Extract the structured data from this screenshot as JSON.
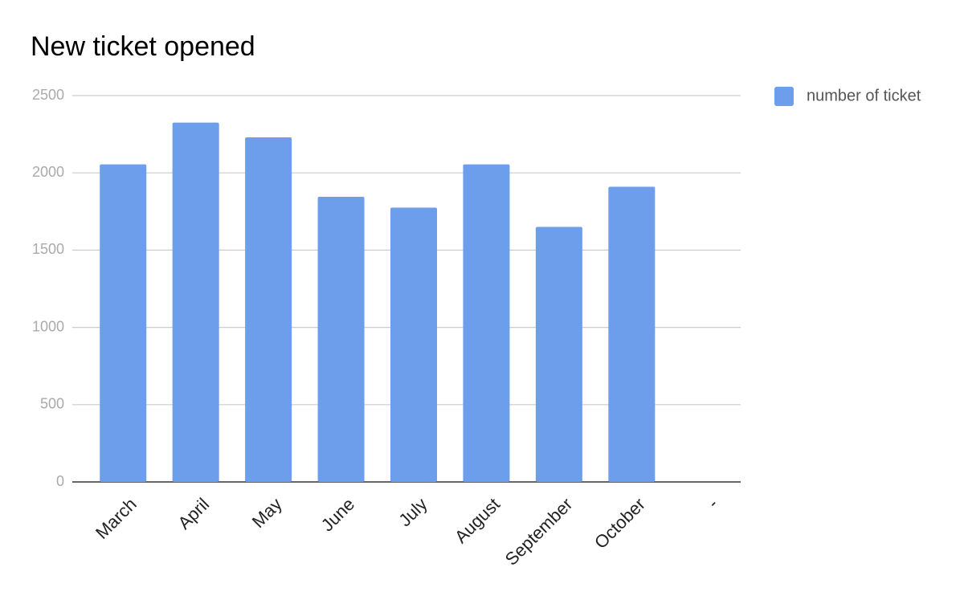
{
  "chart_data": {
    "type": "bar",
    "title": "New ticket opened",
    "categories": [
      "March",
      "April",
      "May",
      "June",
      "July",
      "August",
      "September",
      "October",
      "-"
    ],
    "series": [
      {
        "name": "number of ticket",
        "color": "#6d9eeb",
        "values": [
          2055,
          2325,
          2230,
          1845,
          1775,
          2055,
          1650,
          1910,
          null
        ]
      }
    ],
    "ylim": [
      0,
      2500
    ],
    "yticks": [
      0,
      500,
      1000,
      1500,
      2000,
      2500
    ],
    "grid": true,
    "legend": "right"
  }
}
